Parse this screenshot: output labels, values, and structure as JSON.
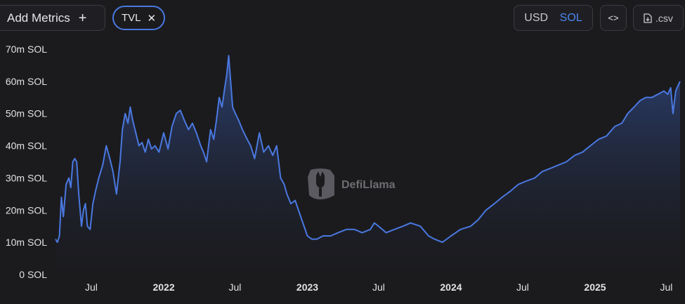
{
  "toolbar": {
    "add_metrics_label": "Add Metrics",
    "add_icon": "+",
    "metric_pill": "TVL",
    "remove_icon": "✕",
    "currency_options": [
      "USD",
      "SOL"
    ],
    "currency_selected": "SOL",
    "embed_icon": "<>",
    "csv_label": ".csv"
  },
  "watermark": "DefiLlama",
  "colors": {
    "line": "#4a78e0",
    "selected": "#4a86f0",
    "background": "#1b1b1e"
  },
  "chart_data": {
    "type": "area",
    "title": "",
    "xlabel": "",
    "ylabel": "",
    "ylim": [
      0,
      70
    ],
    "y_ticks": [
      {
        "value": 0,
        "label": "0 SOL"
      },
      {
        "value": 10,
        "label": "10m SOL"
      },
      {
        "value": 20,
        "label": "20m SOL"
      },
      {
        "value": 30,
        "label": "30m SOL"
      },
      {
        "value": 40,
        "label": "40m SOL"
      },
      {
        "value": 50,
        "label": "50m SOL"
      },
      {
        "value": 60,
        "label": "60m SOL"
      },
      {
        "value": 70,
        "label": "70m SOL"
      }
    ],
    "xlim": [
      "2021-04-01",
      "2025-08-05"
    ],
    "x_ticks": [
      {
        "date": "2021-07-01",
        "label": "Jul",
        "bold": false
      },
      {
        "date": "2022-01-01",
        "label": "2022",
        "bold": true
      },
      {
        "date": "2022-07-01",
        "label": "Jul",
        "bold": false
      },
      {
        "date": "2023-01-01",
        "label": "2023",
        "bold": true
      },
      {
        "date": "2023-07-01",
        "label": "Jul",
        "bold": false
      },
      {
        "date": "2024-01-01",
        "label": "2024",
        "bold": true
      },
      {
        "date": "2024-07-01",
        "label": "Jul",
        "bold": false
      },
      {
        "date": "2025-01-01",
        "label": "2025",
        "bold": true
      },
      {
        "date": "2025-07-01",
        "label": "Jul",
        "bold": false
      }
    ],
    "series": [
      {
        "name": "TVL",
        "x": [
          "2021-04-01",
          "2021-04-06",
          "2021-04-11",
          "2021-04-16",
          "2021-04-21",
          "2021-04-28",
          "2021-05-05",
          "2021-05-10",
          "2021-05-15",
          "2021-05-20",
          "2021-05-25",
          "2021-05-30",
          "2021-06-06",
          "2021-06-11",
          "2021-06-16",
          "2021-06-21",
          "2021-06-28",
          "2021-07-05",
          "2021-07-12",
          "2021-07-20",
          "2021-07-30",
          "2021-08-08",
          "2021-08-17",
          "2021-08-25",
          "2021-09-03",
          "2021-09-12",
          "2021-09-18",
          "2021-09-25",
          "2021-10-02",
          "2021-10-08",
          "2021-10-14",
          "2021-10-22",
          "2021-10-30",
          "2021-11-07",
          "2021-11-15",
          "2021-11-23",
          "2021-12-01",
          "2021-12-10",
          "2021-12-20",
          "2022-01-01",
          "2022-01-12",
          "2022-01-22",
          "2022-02-02",
          "2022-02-12",
          "2022-02-22",
          "2022-03-05",
          "2022-03-15",
          "2022-03-25",
          "2022-04-05",
          "2022-04-12",
          "2022-04-20",
          "2022-04-30",
          "2022-05-08",
          "2022-05-15",
          "2022-05-22",
          "2022-05-29",
          "2022-06-05",
          "2022-06-10",
          "2022-06-15",
          "2022-06-20",
          "2022-06-25",
          "2022-07-02",
          "2022-07-10",
          "2022-07-20",
          "2022-08-01",
          "2022-08-10",
          "2022-08-20",
          "2022-09-01",
          "2022-09-12",
          "2022-09-24",
          "2022-10-05",
          "2022-10-15",
          "2022-10-25",
          "2022-11-03",
          "2022-11-10",
          "2022-11-20",
          "2022-12-01",
          "2022-12-15",
          "2023-01-01",
          "2023-01-12",
          "2023-01-25",
          "2023-02-10",
          "2023-03-01",
          "2023-03-20",
          "2023-04-10",
          "2023-05-01",
          "2023-05-20",
          "2023-06-10",
          "2023-06-20",
          "2023-07-01",
          "2023-07-20",
          "2023-08-10",
          "2023-09-01",
          "2023-09-20",
          "2023-10-15",
          "2023-11-05",
          "2023-11-20",
          "2023-12-10",
          "2024-01-01",
          "2024-01-25",
          "2024-02-20",
          "2024-03-10",
          "2024-03-30",
          "2024-04-20",
          "2024-05-10",
          "2024-06-01",
          "2024-06-20",
          "2024-07-10",
          "2024-08-01",
          "2024-08-20",
          "2024-09-10",
          "2024-09-30",
          "2024-10-20",
          "2024-11-10",
          "2024-11-30",
          "2024-12-20",
          "2025-01-10",
          "2025-01-30",
          "2025-02-20",
          "2025-03-10",
          "2025-03-25",
          "2025-04-10",
          "2025-04-25",
          "2025-05-10",
          "2025-05-25",
          "2025-06-10",
          "2025-06-25",
          "2025-07-05",
          "2025-07-12",
          "2025-07-18",
          "2025-07-25",
          "2025-08-01",
          "2025-08-05"
        ],
        "values": [
          11,
          10,
          12,
          24,
          18,
          28,
          30,
          27,
          35,
          36,
          35,
          25,
          15,
          20,
          22,
          15,
          14,
          22,
          26,
          30,
          34,
          40,
          36,
          32,
          25,
          35,
          45,
          50,
          47,
          52,
          48,
          44,
          40,
          41,
          38,
          42,
          39,
          40,
          38,
          44,
          39,
          46,
          50,
          51,
          48,
          45,
          47,
          44,
          40,
          38,
          35,
          45,
          42,
          48,
          55,
          52,
          58,
          62,
          68,
          60,
          52,
          50,
          48,
          45,
          42,
          40,
          36,
          44,
          38,
          40,
          37,
          40,
          30,
          28,
          25,
          22,
          23,
          18,
          12,
          11,
          11,
          12,
          12,
          13,
          14,
          14,
          13,
          14,
          16,
          15,
          13,
          14,
          15,
          16,
          15,
          12,
          11,
          10,
          12,
          14,
          15,
          17,
          20,
          22,
          24,
          26,
          28,
          29,
          30,
          32,
          33,
          34,
          35,
          37,
          38,
          40,
          42,
          43,
          46,
          47,
          50,
          52,
          54,
          55,
          55,
          56,
          57,
          56,
          58,
          50,
          57,
          59,
          60
        ]
      }
    ]
  }
}
